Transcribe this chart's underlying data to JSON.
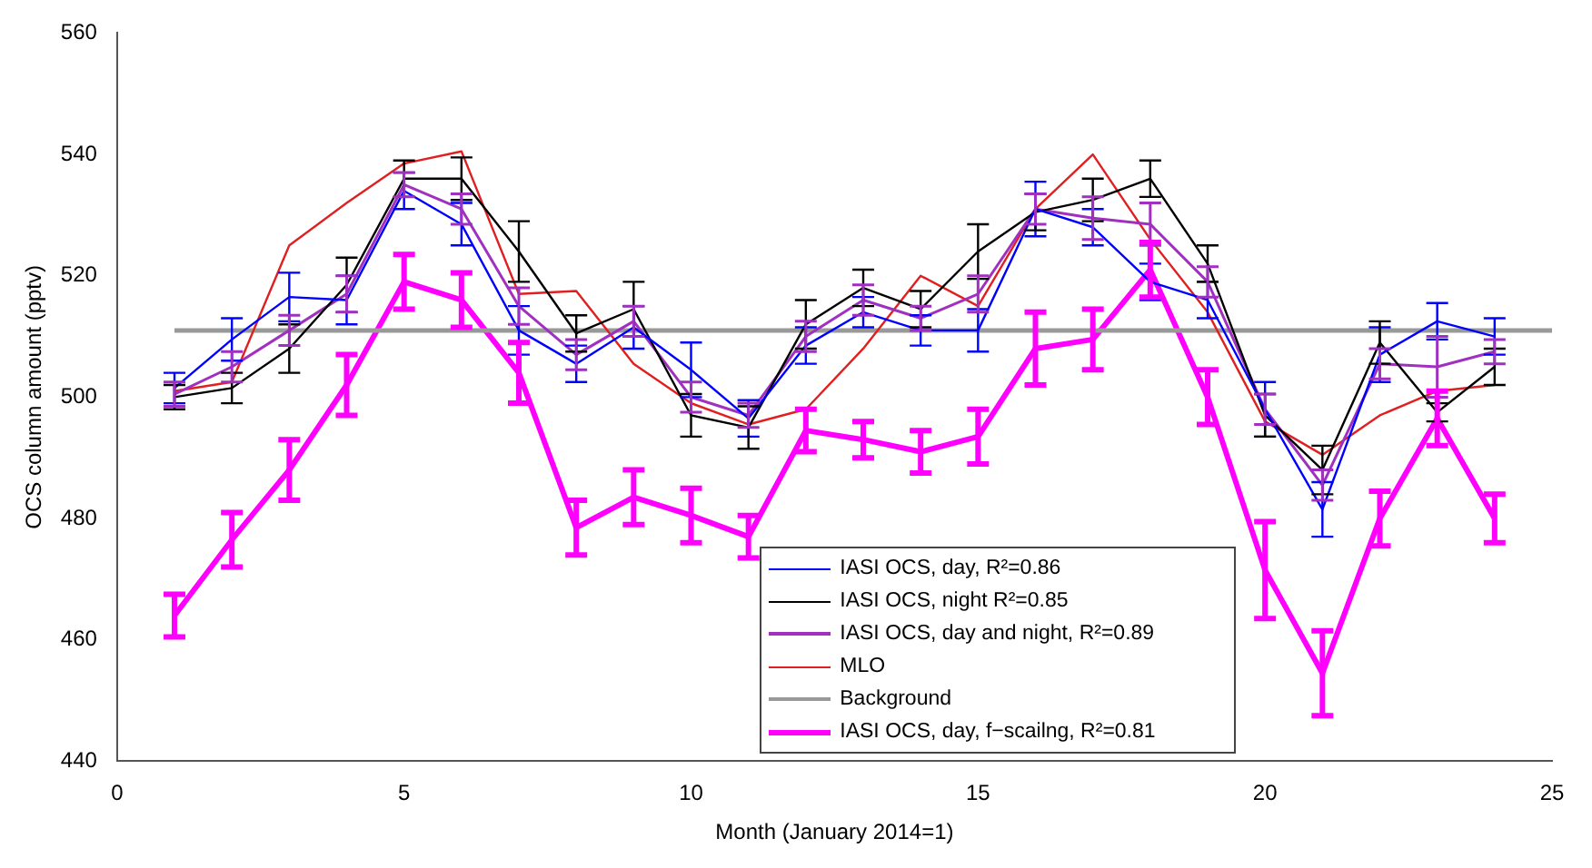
{
  "chart_data": {
    "type": "line",
    "xlabel": "Month (January 2014=1)",
    "ylabel": "OCS column amount (pptv)",
    "xlim": [
      0,
      25
    ],
    "xticks": [
      0,
      5,
      10,
      15,
      20,
      25
    ],
    "ylim": [
      440,
      560
    ],
    "yticks": [
      440,
      460,
      480,
      500,
      520,
      540,
      560
    ],
    "grid": false,
    "legend": "bottom",
    "x": [
      1,
      2,
      3,
      4,
      5,
      6,
      7,
      8,
      9,
      10,
      11,
      12,
      13,
      14,
      15,
      16,
      17,
      18,
      19,
      20,
      21,
      22,
      23,
      24
    ],
    "series": [
      {
        "name": "IASI OCS, day,  R²=0.86",
        "color": "#0000ff",
        "values": [
          501.5,
          509.5,
          516.5,
          516,
          534,
          528.5,
          511,
          505.5,
          511.5,
          504.5,
          496.5,
          508.5,
          514,
          511,
          511,
          531,
          528,
          519,
          516,
          498,
          481.5,
          507,
          512.5,
          510
        ],
        "errors": [
          2.5,
          3.5,
          4,
          4,
          3,
          3.5,
          4,
          3,
          3.5,
          4.5,
          3,
          3,
          2.5,
          2.5,
          3.5,
          4.5,
          3,
          3,
          3,
          4.5,
          4.5,
          4.5,
          3,
          3
        ]
      },
      {
        "name": "IASI OCS, night R²=0.85",
        "color": "#000000",
        "values": [
          500,
          501.5,
          508,
          518.5,
          536,
          536,
          524,
          510.5,
          514.5,
          497,
          495,
          512,
          518,
          514.5,
          524,
          530.5,
          532.5,
          536,
          522,
          497,
          488,
          509,
          497.5,
          505
        ],
        "errors": [
          2,
          2.5,
          4,
          4.5,
          3,
          3.5,
          5,
          3,
          4.5,
          3.5,
          3.5,
          4,
          3,
          3,
          4.5,
          3,
          3.5,
          3,
          3,
          3.5,
          4,
          3.5,
          1.5,
          3
        ]
      },
      {
        "name": "IASI OCS, day and night, R²=0.89",
        "color": "#a030c0",
        "values": [
          500.5,
          505,
          511,
          517,
          535,
          531,
          515,
          507,
          512.5,
          500,
          497,
          510,
          516,
          513,
          517,
          531,
          529.5,
          528.5,
          519,
          498,
          485.5,
          505.5,
          505,
          507.5
        ],
        "errors": [
          2,
          2.5,
          2.5,
          3,
          2,
          2.5,
          3,
          2.5,
          2.5,
          2.5,
          2,
          2.5,
          2.5,
          2,
          3,
          2.5,
          3.5,
          3.5,
          2.5,
          2.5,
          2.5,
          2.5,
          5,
          2
        ]
      },
      {
        "name": "MLO",
        "color": "#e02020",
        "values": [
          501,
          502.5,
          525,
          532,
          538.5,
          540.5,
          517,
          517.5,
          505.5,
          499,
          495.5,
          498,
          508,
          520,
          515,
          531,
          540,
          526,
          514,
          496,
          490.5,
          497,
          501,
          502
        ]
      },
      {
        "name": "Background",
        "color": "#999999",
        "x": [
          1,
          25
        ],
        "values": [
          511,
          511
        ]
      },
      {
        "name": "IASI OCS, day, f−scailng, R²=0.81",
        "color": "#ff00ff",
        "values": [
          464,
          476.5,
          488,
          502,
          519,
          516,
          504,
          478.5,
          483.5,
          480.5,
          477,
          494.5,
          493,
          491,
          493.5,
          508,
          509.5,
          521,
          500,
          471.5,
          454.5,
          480,
          496.5,
          480
        ],
        "errors": [
          3.5,
          4.5,
          5,
          5,
          4.5,
          4.5,
          5,
          4.5,
          4.5,
          4.5,
          3.5,
          3.5,
          3,
          3.5,
          4.5,
          6,
          5,
          4.5,
          4.5,
          8,
          7,
          4.5,
          4.5,
          4
        ]
      }
    ]
  }
}
